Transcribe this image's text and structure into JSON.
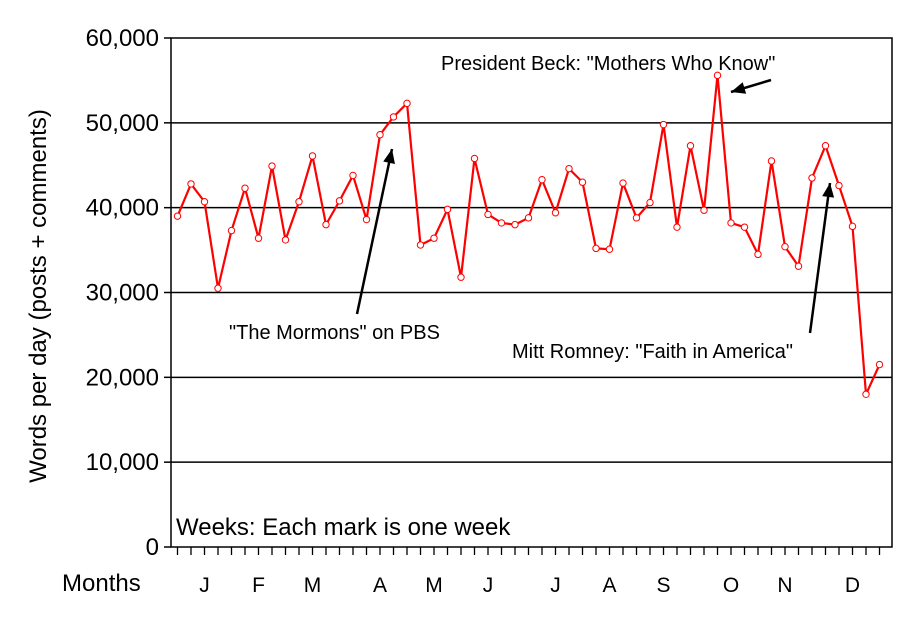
{
  "chart_data": {
    "type": "line",
    "ylabel": "Words per day (posts + comments)",
    "ylim": [
      0,
      60000
    ],
    "yticks": [
      0,
      10000,
      20000,
      30000,
      40000,
      50000,
      60000
    ],
    "ytick_labels": [
      "0",
      "10,000",
      "20,000",
      "30,000",
      "40,000",
      "50,000",
      "60,000"
    ],
    "grid": "horizontal",
    "x_axis_title": "Months",
    "x_note": "Weeks: Each mark is one week",
    "months": [
      {
        "label": "J",
        "week": 2
      },
      {
        "label": "F",
        "week": 6
      },
      {
        "label": "M",
        "week": 10
      },
      {
        "label": "A",
        "week": 15
      },
      {
        "label": "M",
        "week": 19
      },
      {
        "label": "J",
        "week": 23
      },
      {
        "label": "J",
        "week": 28
      },
      {
        "label": "A",
        "week": 32
      },
      {
        "label": "S",
        "week": 36
      },
      {
        "label": "O",
        "week": 41
      },
      {
        "label": "N",
        "week": 45
      },
      {
        "label": "D",
        "week": 50
      }
    ],
    "series": [
      {
        "color": "#ff0000",
        "values": [
          39000,
          42800,
          40700,
          30500,
          37300,
          42300,
          36400,
          44900,
          36200,
          40700,
          46100,
          38000,
          40800,
          43800,
          38600,
          48600,
          50700,
          52300,
          35600,
          36400,
          39800,
          31800,
          45800,
          39200,
          38200,
          38000,
          38800,
          43300,
          39400,
          44600,
          43000,
          35200,
          35100,
          42900,
          38800,
          40600,
          49800,
          37700,
          47300,
          39700,
          55600,
          38200,
          37700,
          34500,
          45500,
          35400,
          33100,
          43500,
          47300,
          42600,
          37800,
          18000,
          21500
        ]
      }
    ],
    "annotations": [
      {
        "text": "President Beck: \"Mothers Who Know\"",
        "week": 40
      },
      {
        "text": "\"The Mormons\" on PBS",
        "week": 16
      },
      {
        "text": "Mitt Romney: \"Faith in America\"",
        "week": 48
      }
    ]
  }
}
